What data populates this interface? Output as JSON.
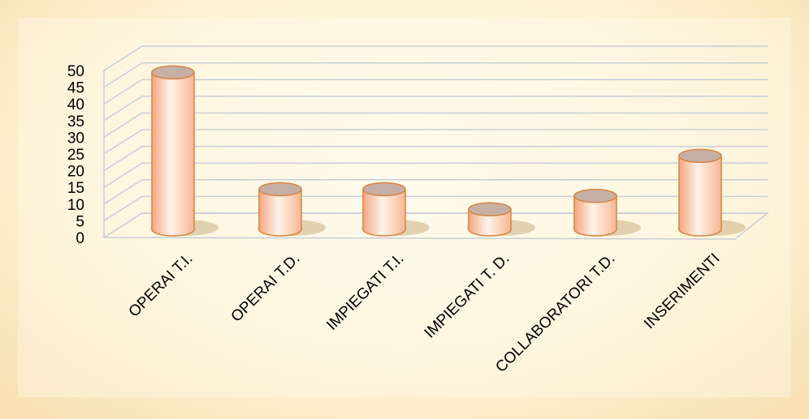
{
  "chart_data": {
    "type": "bar3d",
    "categories": [
      "OPERAI T.I.",
      "OPERAI T.D.",
      "IMPIEGATI T.I.",
      "IMPIEGATI T. D.",
      "COLLABORATORI T.D.",
      "INSERIMENTI"
    ],
    "values": [
      47,
      12,
      12,
      6,
      10,
      22
    ],
    "color": "#f4b08a",
    "ylim": [
      0,
      50
    ],
    "yticks": [
      0,
      5,
      10,
      15,
      20,
      25,
      30,
      35,
      40,
      45,
      50
    ],
    "grid": true
  }
}
